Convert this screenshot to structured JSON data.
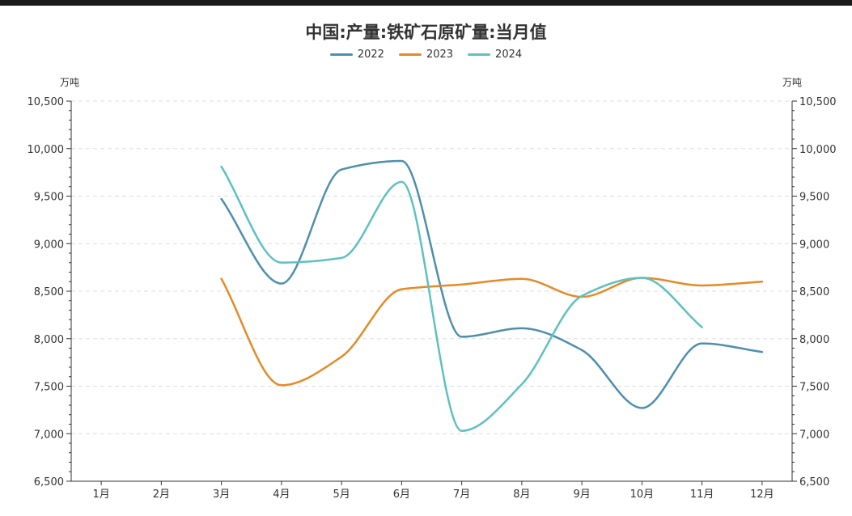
{
  "chart_data": {
    "type": "line",
    "title": "中国:产量:铁矿石原矿量:当月值",
    "ylabel_left": "万吨",
    "ylabel_right": "万吨",
    "ylim": [
      6500,
      10500
    ],
    "yticks": [
      6500,
      7000,
      7500,
      8000,
      8500,
      9000,
      9500,
      10000,
      10500
    ],
    "ytick_labels": [
      "6,500",
      "7,000",
      "7,500",
      "8,000",
      "8,500",
      "9,000",
      "9,500",
      "10,000",
      "10,500"
    ],
    "categories": [
      "1月",
      "2月",
      "3月",
      "4月",
      "5月",
      "6月",
      "7月",
      "8月",
      "9月",
      "10月",
      "11月",
      "12月"
    ],
    "grid": true,
    "legend_position": "top-center",
    "series": [
      {
        "name": "2022",
        "color": "#4e8fad",
        "values": [
          null,
          null,
          9470,
          8580,
          9780,
          9870,
          8020,
          8110,
          7880,
          7270,
          7950,
          7860
        ]
      },
      {
        "name": "2023",
        "color": "#e58a27",
        "values": [
          null,
          null,
          8630,
          7510,
          7810,
          8520,
          8570,
          8630,
          8440,
          8640,
          8560,
          8600
        ]
      },
      {
        "name": "2024",
        "color": "#5fc0c0",
        "values": [
          null,
          null,
          9810,
          8800,
          8850,
          9650,
          7030,
          7520,
          8450,
          8640,
          8120,
          null
        ]
      }
    ]
  }
}
